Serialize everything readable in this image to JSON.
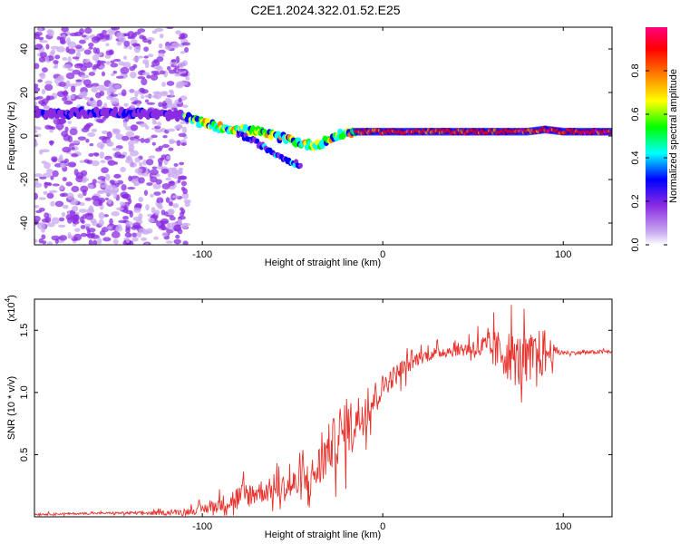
{
  "page_title": "C2E1.2024.322.01.52.E25",
  "chart_data": [
    {
      "type": "heatmap",
      "title": "C2E1.2024.322.01.52.E25",
      "xlabel": "Height of straight line (km)",
      "ylabel": "Frequency (Hz)",
      "xlim": [
        -193,
        127
      ],
      "ylim": [
        -50,
        50
      ],
      "x_ticks": [
        -100,
        0,
        100
      ],
      "y_ticks": [
        -40,
        -20,
        0,
        20,
        40
      ],
      "colorbar": {
        "label": "Normalized spectral amplitude",
        "range": [
          0,
          1
        ],
        "ticks": [
          0.0,
          0.2,
          0.4,
          0.6,
          0.8
        ],
        "colormap": [
          "#ffffff",
          "#c8a8f0",
          "#8a2be2",
          "#0000ff",
          "#00ffff",
          "#00ff00",
          "#ffff00",
          "#ff8000",
          "#ff0000",
          "#ff00ff"
        ]
      },
      "ridge": {
        "x": [
          -193,
          -150,
          -125,
          -110,
          -100,
          -90,
          -80,
          -70,
          -60,
          -50,
          -42,
          -38,
          -33,
          -28,
          -22,
          -15,
          -10,
          0,
          20,
          40,
          60,
          80,
          90,
          100,
          110,
          127
        ],
        "y": [
          10,
          11,
          10,
          9,
          6,
          4,
          3,
          2,
          0,
          -2,
          -4,
          -4,
          -3,
          -1,
          1,
          2,
          2,
          2,
          2,
          2,
          2,
          2,
          3,
          2,
          2,
          2
        ]
      },
      "branch": {
        "x": [
          -80,
          -70,
          -60,
          -50,
          -45
        ],
        "y": [
          1,
          -3,
          -8,
          -12,
          -14
        ]
      }
    },
    {
      "type": "line",
      "xlabel": "Height of straight line (km)",
      "ylabel": "SNR (10 * v/v)",
      "y_multiplier": "(x10",
      "y_multiplier_exp": "4",
      "xlim": [
        -193,
        127
      ],
      "ylim": [
        0,
        1.75
      ],
      "x_ticks": [
        -100,
        0,
        100
      ],
      "y_ticks": [
        0.5,
        1.0,
        1.5
      ],
      "series": [
        {
          "color": "#e8322d",
          "envelope": {
            "x": [
              -193,
              -150,
              -125,
              -110,
              -100,
              -90,
              -80,
              -70,
              -60,
              -50,
              -40,
              -35,
              -30,
              -20,
              -10,
              0,
              10,
              20,
              30,
              40,
              50,
              60,
              70,
              75,
              80,
              85,
              90,
              95,
              100,
              110,
              127
            ],
            "base": [
              0.02,
              0.03,
              0.03,
              0.04,
              0.06,
              0.1,
              0.15,
              0.2,
              0.22,
              0.25,
              0.3,
              0.4,
              0.55,
              0.7,
              0.85,
              1.05,
              1.18,
              1.28,
              1.32,
              1.34,
              1.36,
              1.35,
              1.3,
              1.25,
              1.28,
              1.3,
              1.32,
              1.33,
              1.32,
              1.32,
              1.33
            ],
            "noise": [
              0.01,
              0.01,
              0.02,
              0.03,
              0.05,
              0.08,
              0.14,
              0.12,
              0.12,
              0.16,
              0.2,
              0.24,
              0.25,
              0.28,
              0.22,
              0.12,
              0.1,
              0.07,
              0.06,
              0.06,
              0.1,
              0.18,
              0.26,
              0.28,
              0.22,
              0.24,
              0.26,
              0.06,
              0.02,
              0.02,
              0.02
            ]
          }
        }
      ]
    }
  ]
}
